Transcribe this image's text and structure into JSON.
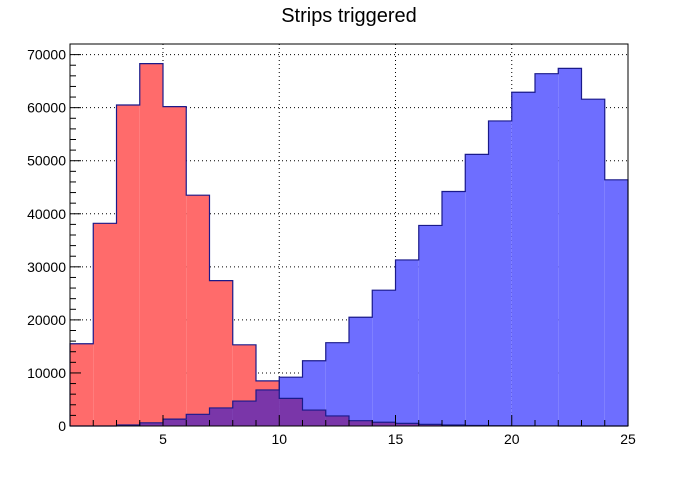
{
  "colors": {
    "red_fill": "#ff6b6b",
    "blue_fill": "#6e6eff",
    "overlap_fill": "#7a36a9",
    "outline": "#1a1a8a",
    "frame": "#000000",
    "grid": "#000000"
  },
  "chart_data": {
    "type": "bar",
    "title": "Strips triggered",
    "xlabel": "",
    "ylabel": "",
    "xlim": [
      1,
      25
    ],
    "ylim": [
      0,
      72000
    ],
    "grid": true,
    "x_ticks": [
      5,
      10,
      15,
      20,
      25
    ],
    "y_ticks": [
      0,
      10000,
      20000,
      30000,
      40000,
      50000,
      60000,
      70000
    ],
    "bin_edges": [
      1,
      2,
      3,
      4,
      5,
      6,
      7,
      8,
      9,
      10,
      11,
      12,
      13,
      14,
      15,
      16,
      17,
      18,
      19,
      20,
      21,
      22,
      23,
      24,
      25
    ],
    "series": [
      {
        "values": [
          15500,
          38200,
          60500,
          68300,
          60200,
          43500,
          27400,
          15300,
          8500,
          5200,
          3000,
          1900,
          1000,
          700,
          500,
          300,
          200,
          100,
          50,
          30,
          10,
          5,
          2,
          1
        ],
        "color": "#ff6b6b"
      },
      {
        "values": [
          0,
          0,
          200,
          600,
          1300,
          2200,
          3400,
          4700,
          6800,
          9200,
          12300,
          15700,
          20500,
          25600,
          31300,
          37800,
          44200,
          51200,
          57500,
          62900,
          66400,
          67400,
          61600,
          46400
        ],
        "color": "#6e6eff"
      }
    ]
  }
}
